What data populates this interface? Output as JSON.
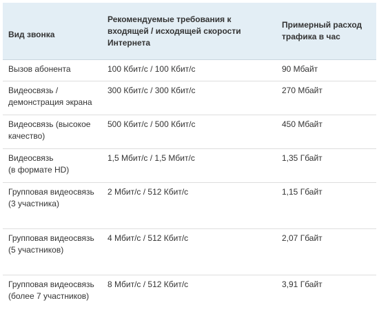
{
  "table": {
    "headers": [
      "Вид звонка",
      "Рекомендуемые требования к входящей / исходящей скорости Интернета",
      "Примерный расход трафика в час"
    ],
    "rows": [
      {
        "call_type": "Вызов абонента",
        "speed": "100 Кбит/с / 100 Кбит/с",
        "traffic": "90 Мбайт"
      },
      {
        "call_type": "Видеосвязь / демонстрация экрана",
        "speed": "300 Кбит/с / 300 Кбит/с",
        "traffic": "270 Мбайт"
      },
      {
        "call_type": "Видеосвязь (высокое качество)",
        "speed": "500 Кбит/с / 500 Кбит/с",
        "traffic": "450 Мбайт"
      },
      {
        "call_type": "Видеосвязь\n(в формате HD)",
        "speed": "1,5 Мбит/с / 1,5 Мбит/с",
        "traffic": "1,35 Гбайт"
      },
      {
        "call_type": "Групповая видеосвязь\n(3 участника)",
        "speed": "2 Мбит/с / 512 Кбит/с",
        "traffic": "1,15 Гбайт"
      },
      {
        "call_type": "Групповая видеосвязь\n(5 участников)",
        "speed": "4 Мбит/с / 512 Кбит/с",
        "traffic": "2,07 Гбайт"
      },
      {
        "call_type": "Групповая видеосвязь\n(более 7 участников)",
        "speed": "8 Мбит/с / 512 Кбит/с",
        "traffic": "3,91 Гбайт"
      }
    ]
  }
}
